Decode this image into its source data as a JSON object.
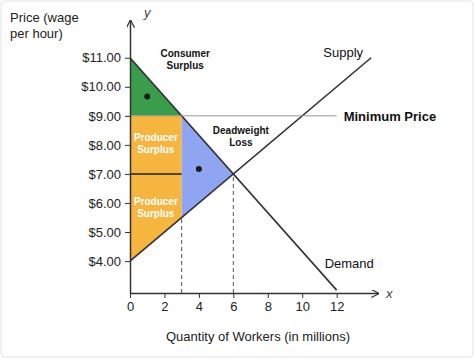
{
  "chart_data": {
    "type": "line",
    "x_label": "Quantity of Workers (in millions)",
    "y_label": [
      "Price (wage",
      "per hour)"
    ],
    "axis_letters": {
      "x": "x",
      "y": "y"
    },
    "xlim": [
      0,
      14.4
    ],
    "xticks": [
      0,
      2,
      4,
      6,
      8,
      10,
      12
    ],
    "ylim": [
      2.9,
      12.3
    ],
    "yticks": [
      {
        "value": 4,
        "label": "$4.00"
      },
      {
        "value": 5,
        "label": "$5.00"
      },
      {
        "value": 6,
        "label": "$6.00"
      },
      {
        "value": 7,
        "label": "$7.00"
      },
      {
        "value": 8,
        "label": "$8.00"
      },
      {
        "value": 9,
        "label": "$9.00"
      },
      {
        "value": 10,
        "label": "$10.00"
      },
      {
        "value": 11,
        "label": "$11.00"
      }
    ],
    "series": [
      {
        "name": "Supply",
        "color": "#333333",
        "x": [
          0,
          14
        ],
        "values": [
          4,
          11
        ]
      },
      {
        "name": "Demand",
        "color": "#333333",
        "x": [
          0,
          12
        ],
        "values": [
          11,
          3
        ]
      },
      {
        "name": "Minimum Price",
        "color": "#999999",
        "x": [
          0,
          12
        ],
        "values": [
          9,
          9
        ]
      }
    ],
    "regions": [
      {
        "label": [
          "Consumer",
          "Surplus"
        ],
        "color": "#3a9d4c",
        "x": [
          0,
          0,
          3
        ],
        "values": [
          11,
          9,
          9
        ]
      },
      {
        "label": [
          "Producer",
          "Surplus"
        ],
        "color": "#f5b53f",
        "x": [
          0,
          3,
          3,
          0
        ],
        "values": [
          9,
          9,
          7,
          7
        ]
      },
      {
        "label": [
          "Producer",
          "Surplus"
        ],
        "color": "#f5b53f",
        "x": [
          0,
          3,
          3,
          0
        ],
        "values": [
          7,
          7,
          5.5,
          4
        ]
      },
      {
        "label": [
          "Deadweight",
          "Loss"
        ],
        "color": "#8fa5f2",
        "x": [
          3,
          3,
          6
        ],
        "values": [
          9,
          5.5,
          7
        ]
      }
    ],
    "vlines": [
      {
        "x": 3,
        "value": 5.5
      },
      {
        "x": 6,
        "value": 7
      }
    ],
    "hlines": [
      {
        "value": 7,
        "x": [
          0,
          3
        ]
      }
    ]
  }
}
